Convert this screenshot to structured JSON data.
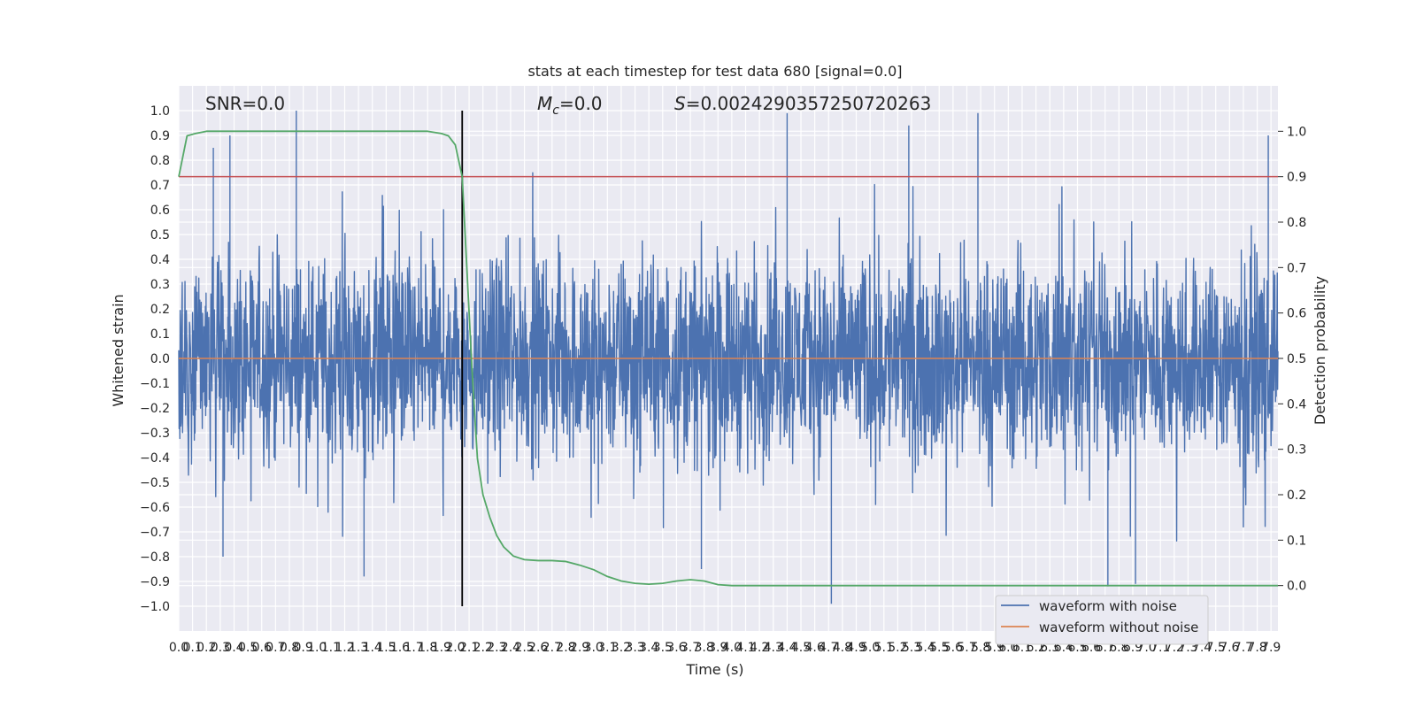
{
  "chart_data": {
    "type": "line",
    "title": "stats at each timestep for test data 680 [signal=0.0]",
    "xlabel": "Time (s)",
    "ylabel_left": "Whitened strain",
    "ylabel_right": "Detection probability",
    "xlim": [
      0,
      7.95
    ],
    "ylim_left": [
      -1.1,
      1.1
    ],
    "ylim_right": [
      -0.1,
      1.1
    ],
    "x_tick_step": 0.1,
    "y_left_ticks": [
      -1.0,
      -0.9,
      -0.8,
      -0.7,
      -0.6,
      -0.5,
      -0.4,
      -0.3,
      -0.2,
      -0.1,
      0.0,
      0.1,
      0.2,
      0.3,
      0.4,
      0.5,
      0.6,
      0.7,
      0.8,
      0.9,
      1.0
    ],
    "y_right_ticks": [
      0.0,
      0.1,
      0.2,
      0.3,
      0.4,
      0.5,
      0.6,
      0.7,
      0.8,
      0.9,
      1.0
    ],
    "grid": true,
    "annotations": {
      "snr": "SNR=0.0",
      "mc_symbol": "M",
      "mc_sub": "c",
      "mc_value": "=0.0",
      "s_symbol": "S",
      "s_value": "=0.0024290357250720263"
    },
    "threshold": {
      "value": 0.9,
      "axis": "right",
      "color": "#c44e52"
    },
    "marker_time": 2.05,
    "legend": {
      "position": "bottom-right",
      "entries": [
        "waveform with noise",
        "waveform without noise"
      ]
    },
    "series": [
      {
        "name": "waveform with noise",
        "color": "#4c72b0",
        "axis": "left",
        "t_start": 0,
        "t_step": 0.0025,
        "amplitude_envelope": {
          "typical_max": 0.45,
          "typical_min": -0.45,
          "peak_max": 1.0,
          "peak_min": -0.99
        },
        "notable_peaks": [
          [
            0.85,
            1.0
          ],
          [
            4.4,
            0.99
          ],
          [
            5.78,
            0.99
          ],
          [
            5.28,
            0.94
          ],
          [
            7.88,
            0.9
          ],
          [
            0.37,
            0.9
          ],
          [
            0.25,
            0.85
          ],
          [
            4.72,
            -0.99
          ],
          [
            6.72,
            -0.92
          ],
          [
            6.92,
            -0.91
          ],
          [
            1.34,
            -0.88
          ],
          [
            3.78,
            -0.85
          ],
          [
            0.32,
            -0.8
          ]
        ]
      },
      {
        "name": "waveform without noise",
        "color": "#dd8452",
        "axis": "left",
        "x": [
          0,
          7.95
        ],
        "y": [
          0,
          0
        ]
      },
      {
        "name": "",
        "color": "#55a868",
        "axis": "right",
        "x": [
          0.0,
          0.06,
          0.12,
          0.2,
          0.5,
          1.0,
          1.5,
          1.8,
          1.9,
          1.95,
          2.0,
          2.05,
          2.08,
          2.12,
          2.16,
          2.2,
          2.25,
          2.3,
          2.35,
          2.42,
          2.5,
          2.6,
          2.7,
          2.8,
          2.9,
          3.0,
          3.1,
          3.2,
          3.3,
          3.4,
          3.5,
          3.6,
          3.7,
          3.8,
          3.9,
          4.0,
          4.1,
          4.3,
          4.6,
          5.0,
          6.0,
          7.0,
          7.95
        ],
        "y": [
          0.9,
          0.99,
          0.995,
          1.0,
          1.0,
          1.0,
          1.0,
          1.0,
          0.995,
          0.99,
          0.97,
          0.9,
          0.72,
          0.48,
          0.28,
          0.2,
          0.15,
          0.11,
          0.085,
          0.065,
          0.057,
          0.055,
          0.055,
          0.053,
          0.045,
          0.035,
          0.02,
          0.01,
          0.005,
          0.003,
          0.005,
          0.01,
          0.013,
          0.01,
          0.002,
          0.0,
          0.0,
          0.0,
          0.0,
          0.0,
          0.0,
          0.0,
          0.0
        ]
      }
    ]
  }
}
